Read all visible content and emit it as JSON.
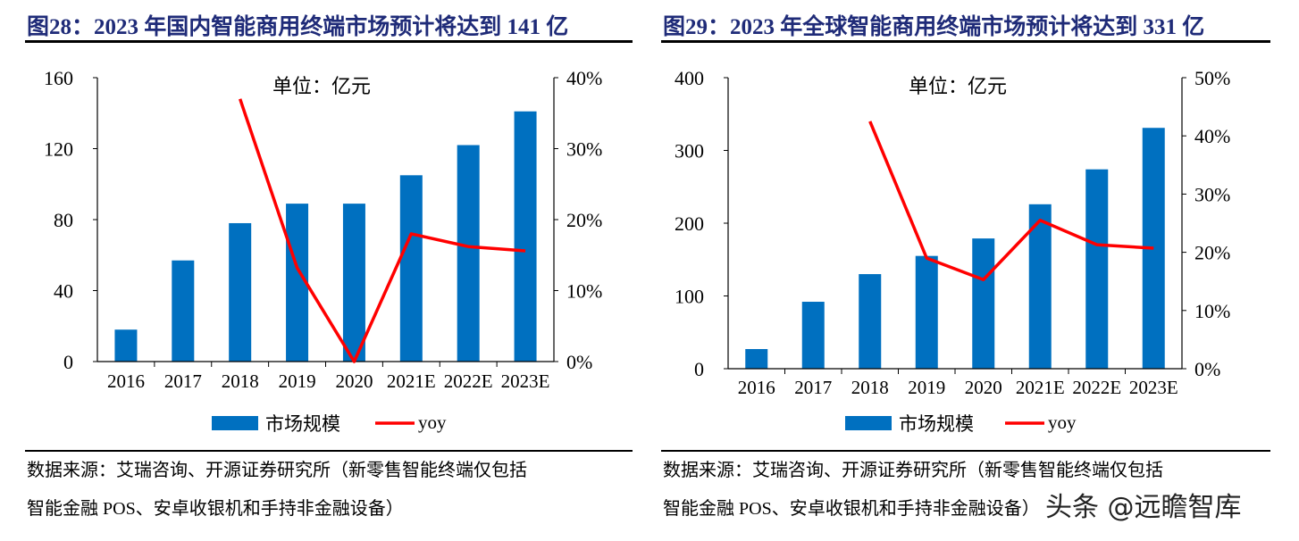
{
  "chart_data": [
    {
      "type": "bar+line",
      "title": "图28：2023 年国内智能商用终端市场预计将达到 141 亿",
      "unit_label": "单位：亿元",
      "categories": [
        "2016",
        "2017",
        "2018",
        "2019",
        "2020",
        "2021E",
        "2022E",
        "2023E"
      ],
      "series": [
        {
          "name": "市场规模",
          "type": "bar",
          "axis": "left",
          "color": "#0070c0",
          "values": [
            18,
            57,
            78,
            89,
            89,
            105,
            122,
            141
          ]
        },
        {
          "name": "yoy",
          "type": "line",
          "axis": "right",
          "color": "#ff0000",
          "values": [
            null,
            null,
            37,
            13.2,
            0,
            18,
            16.2,
            15.6
          ]
        }
      ],
      "ylim_left": [
        0,
        160
      ],
      "yticks_left": [
        "0",
        "40",
        "80",
        "120",
        "160"
      ],
      "ylim_right": [
        0,
        40
      ],
      "yticks_right": [
        "0%",
        "10%",
        "20%",
        "30%",
        "40%"
      ],
      "grid": false,
      "legend": "bottom",
      "source": [
        "数据来源：艾瑞咨询、开源证券研究所（新零售智能终端仅包括",
        "智能金融 POS、安卓收银机和手持非金融设备）"
      ]
    },
    {
      "type": "bar+line",
      "title": "图29：2023 年全球智能商用终端市场预计将达到 331 亿",
      "unit_label": "单位：亿元",
      "categories": [
        "2016",
        "2017",
        "2018",
        "2019",
        "2020",
        "2021E",
        "2022E",
        "2023E"
      ],
      "series": [
        {
          "name": "市场规模",
          "type": "bar",
          "axis": "left",
          "color": "#0070c0",
          "values": [
            27,
            92,
            130,
            155,
            179,
            226,
            274,
            331
          ]
        },
        {
          "name": "yoy",
          "type": "line",
          "axis": "right",
          "color": "#ff0000",
          "values": [
            null,
            null,
            42.5,
            19,
            15.3,
            25.5,
            21.3,
            20.7
          ]
        }
      ],
      "ylim_left": [
        0,
        400
      ],
      "yticks_left": [
        "0",
        "100",
        "200",
        "300",
        "400"
      ],
      "ylim_right": [
        0,
        50
      ],
      "yticks_right": [
        "0%",
        "10%",
        "20%",
        "30%",
        "40%",
        "50%"
      ],
      "grid": false,
      "legend": "bottom",
      "source": [
        "数据来源：艾瑞咨询、开源证券研究所（新零售智能终端仅包括",
        "智能金融 POS、安卓收银机和手持非金融设备）"
      ]
    }
  ],
  "watermark": "头条 @远瞻智库"
}
